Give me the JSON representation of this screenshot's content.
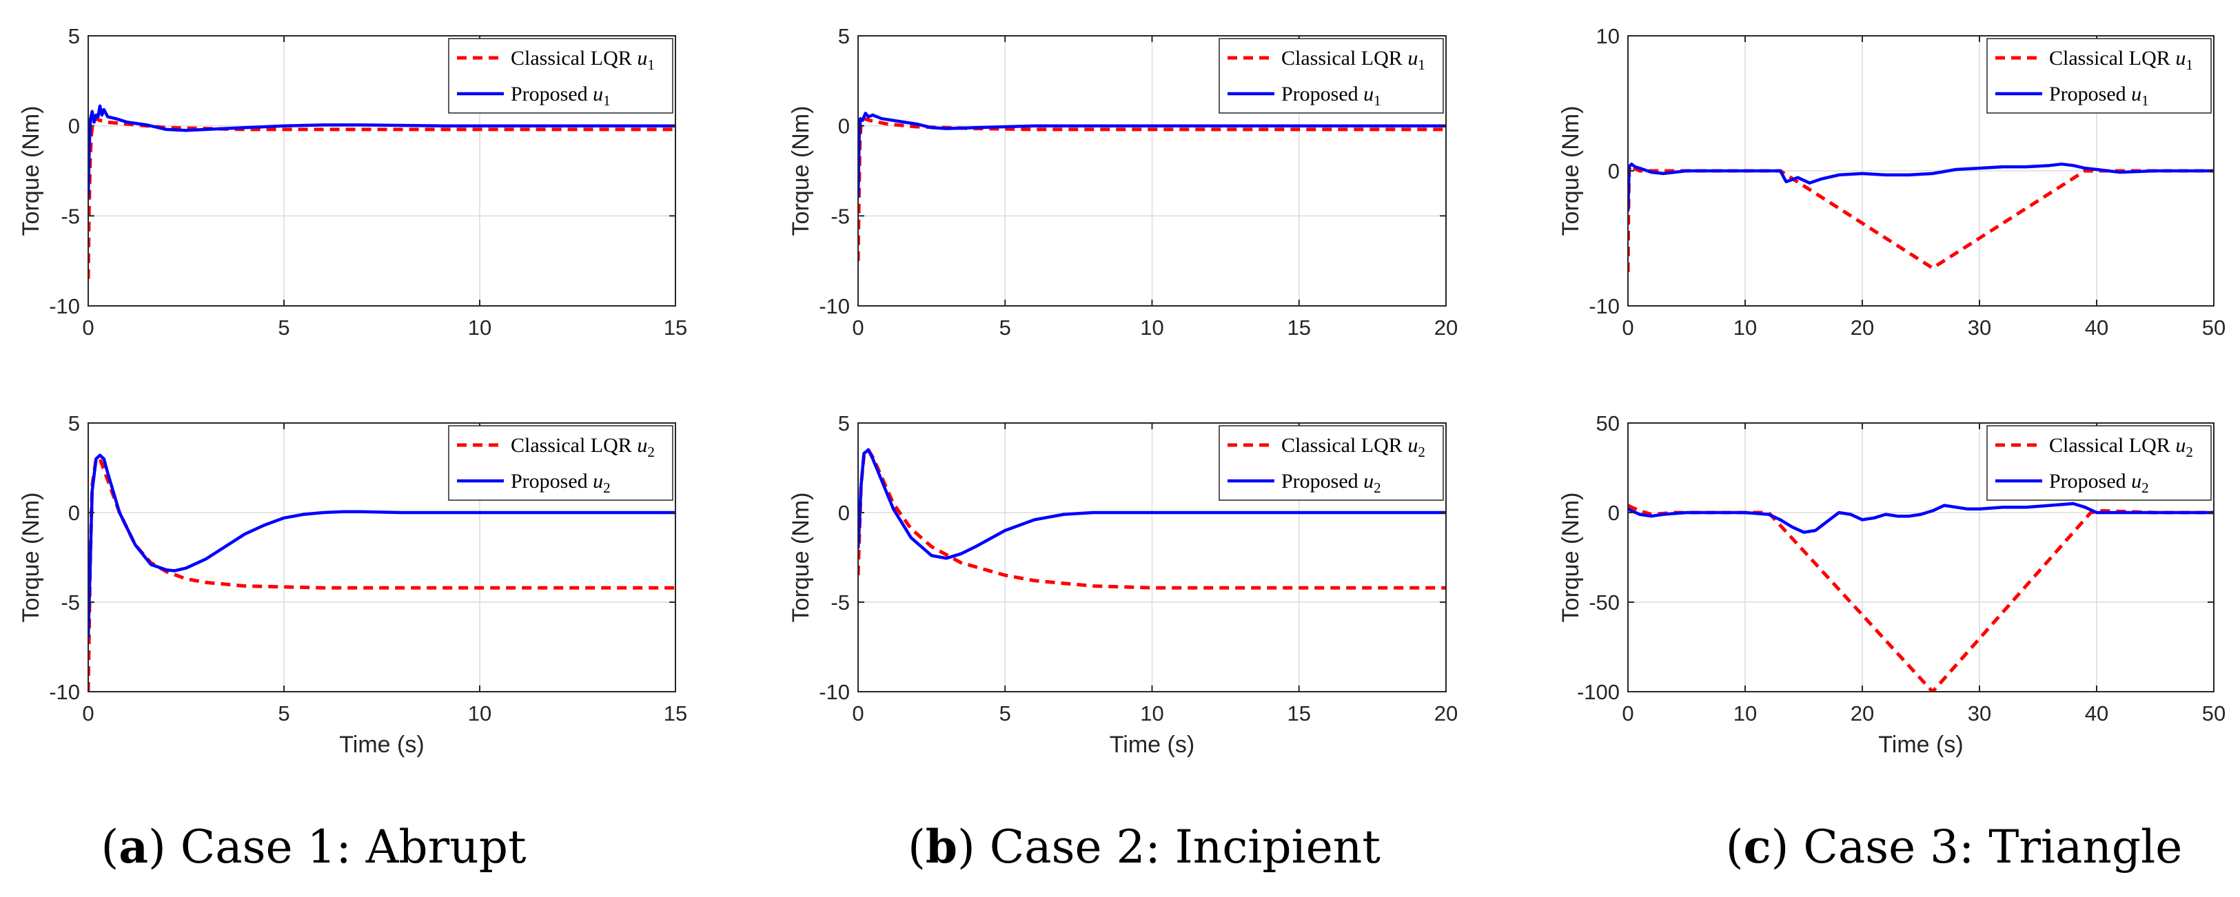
{
  "captions": [
    {
      "letter": "a",
      "text": " Case 1: Abrupt"
    },
    {
      "letter": "b",
      "text": " Case 2: Incipient"
    },
    {
      "letter": "c",
      "text": " Case 3: Triangle"
    }
  ],
  "chart_data": [
    {
      "type": "line",
      "case": "a",
      "position": "top",
      "xlabel": "",
      "ylabel": "Torque (Nm)",
      "xlim": [
        0,
        15
      ],
      "ylim": [
        -10,
        5
      ],
      "xticks": [
        0,
        5,
        10,
        15
      ],
      "yticks": [
        -10,
        -5,
        0,
        5
      ],
      "grid": true,
      "legend_position": "top-right",
      "series": [
        {
          "name": "Classical LQR",
          "sub": "1",
          "color": "#ff0000",
          "dash": true,
          "x": [
            0,
            0.02,
            0.05,
            0.08,
            0.12,
            0.2,
            0.3,
            0.5,
            1,
            2,
            4,
            15
          ],
          "y": [
            -8.5,
            -5,
            -2,
            -0.5,
            0.2,
            0.4,
            0.3,
            0.2,
            0.1,
            -0.1,
            -0.2,
            -0.2
          ]
        },
        {
          "name": "Proposed",
          "sub": "1",
          "color": "#0000ff",
          "dash": false,
          "x": [
            0,
            0.03,
            0.06,
            0.1,
            0.15,
            0.2,
            0.25,
            0.3,
            0.35,
            0.4,
            0.5,
            0.7,
            1,
            1.5,
            2,
            2.5,
            3,
            4,
            5,
            6,
            7,
            9,
            15
          ],
          "y": [
            -4,
            -1,
            0.4,
            0.8,
            0.2,
            0.6,
            0.5,
            1.1,
            0.6,
            0.9,
            0.5,
            0.4,
            0.2,
            0.05,
            -0.2,
            -0.25,
            -0.2,
            -0.1,
            0,
            0.05,
            0.05,
            0,
            0
          ]
        }
      ]
    },
    {
      "type": "line",
      "case": "a",
      "position": "bottom",
      "xlabel": "Time (s)",
      "ylabel": "Torque (Nm)",
      "xlim": [
        0,
        15
      ],
      "ylim": [
        -10,
        5
      ],
      "xticks": [
        0,
        5,
        10,
        15
      ],
      "yticks": [
        -10,
        -5,
        0,
        5
      ],
      "grid": true,
      "legend_position": "top-right",
      "series": [
        {
          "name": "Classical LQR",
          "sub": "2",
          "color": "#ff0000",
          "dash": true,
          "x": [
            0,
            0.05,
            0.1,
            0.2,
            0.3,
            0.5,
            0.8,
            1.2,
            1.6,
            2,
            2.5,
            3,
            4,
            5,
            6,
            8,
            15
          ],
          "y": [
            -10,
            -3,
            1.5,
            3.0,
            3.0,
            1.8,
            0,
            -1.8,
            -2.8,
            -3.3,
            -3.7,
            -3.9,
            -4.1,
            -4.15,
            -4.2,
            -4.2,
            -4.2
          ]
        },
        {
          "name": "Proposed",
          "sub": "2",
          "color": "#0000ff",
          "dash": false,
          "x": [
            0,
            0.05,
            0.1,
            0.2,
            0.3,
            0.4,
            0.5,
            0.8,
            1.2,
            1.6,
            2,
            2.2,
            2.5,
            3,
            3.5,
            4,
            4.5,
            5,
            5.5,
            6,
            6.5,
            7,
            8,
            10,
            15
          ],
          "y": [
            -7,
            -3,
            1.2,
            3.0,
            3.2,
            3.0,
            2.2,
            0,
            -1.8,
            -2.9,
            -3.2,
            -3.25,
            -3.1,
            -2.6,
            -1.9,
            -1.2,
            -0.7,
            -0.3,
            -0.1,
            0,
            0.05,
            0.05,
            0,
            0,
            0
          ]
        }
      ]
    },
    {
      "type": "line",
      "case": "b",
      "position": "top",
      "xlabel": "",
      "ylabel": "Torque (Nm)",
      "xlim": [
        0,
        20
      ],
      "ylim": [
        -10,
        5
      ],
      "xticks": [
        0,
        5,
        10,
        15,
        20
      ],
      "yticks": [
        -10,
        -5,
        0,
        5
      ],
      "grid": true,
      "legend_position": "top-right",
      "series": [
        {
          "name": "Classical LQR",
          "sub": "1",
          "color": "#ff0000",
          "dash": true,
          "x": [
            0,
            0.03,
            0.06,
            0.1,
            0.2,
            0.4,
            1,
            2,
            4,
            6,
            20
          ],
          "y": [
            -7.5,
            -4,
            -1,
            0.2,
            0.4,
            0.3,
            0.1,
            -0.05,
            -0.15,
            -0.2,
            -0.2
          ]
        },
        {
          "name": "Proposed",
          "sub": "1",
          "color": "#0000ff",
          "dash": false,
          "x": [
            0,
            0.04,
            0.08,
            0.15,
            0.25,
            0.35,
            0.5,
            0.8,
            1.2,
            2,
            2.5,
            3,
            4,
            5,
            6,
            8,
            20
          ],
          "y": [
            -4,
            -0.5,
            0.4,
            0.3,
            0.7,
            0.5,
            0.6,
            0.4,
            0.3,
            0.1,
            -0.1,
            -0.15,
            -0.1,
            -0.05,
            0,
            0,
            0
          ]
        }
      ]
    },
    {
      "type": "line",
      "case": "b",
      "position": "bottom",
      "xlabel": "Time (s)",
      "ylabel": "Torque (Nm)",
      "xlim": [
        0,
        20
      ],
      "ylim": [
        -10,
        5
      ],
      "xticks": [
        0,
        5,
        10,
        15,
        20
      ],
      "yticks": [
        -10,
        -5,
        0,
        5
      ],
      "grid": true,
      "legend_position": "top-right",
      "series": [
        {
          "name": "Classical LQR",
          "sub": "2",
          "color": "#ff0000",
          "dash": true,
          "x": [
            0,
            0.05,
            0.1,
            0.2,
            0.35,
            0.5,
            0.8,
            1.2,
            1.8,
            2.5,
            3.5,
            5,
            6,
            8,
            10,
            15,
            20
          ],
          "y": [
            -3.5,
            -1,
            1.5,
            3.2,
            3.5,
            3.1,
            2.0,
            0.5,
            -0.9,
            -1.9,
            -2.8,
            -3.5,
            -3.8,
            -4.1,
            -4.2,
            -4.2,
            -4.2
          ]
        },
        {
          "name": "Proposed",
          "sub": "2",
          "color": "#0000ff",
          "dash": false,
          "x": [
            0,
            0.05,
            0.1,
            0.2,
            0.35,
            0.5,
            0.8,
            1.2,
            1.8,
            2.5,
            3,
            3.5,
            4,
            5,
            6,
            7,
            8,
            10,
            20
          ],
          "y": [
            -2,
            -0.5,
            1.5,
            3.3,
            3.5,
            3.0,
            1.8,
            0.2,
            -1.4,
            -2.4,
            -2.55,
            -2.3,
            -1.9,
            -1.0,
            -0.4,
            -0.1,
            0,
            0,
            0
          ]
        }
      ]
    },
    {
      "type": "line",
      "case": "c",
      "position": "top",
      "xlabel": "",
      "ylabel": "Torque (Nm)",
      "xlim": [
        0,
        50
      ],
      "ylim": [
        -10,
        10
      ],
      "xticks": [
        0,
        10,
        20,
        30,
        40,
        50
      ],
      "yticks": [
        -10,
        0,
        10
      ],
      "grid": true,
      "legend_position": "top-right",
      "series": [
        {
          "name": "Classical LQR",
          "sub": "1",
          "color": "#ff0000",
          "dash": true,
          "x": [
            0,
            0.05,
            0.1,
            0.2,
            0.5,
            1,
            3,
            13,
            26,
            39,
            40,
            50
          ],
          "y": [
            -7.5,
            -3,
            0,
            0.4,
            0.2,
            0,
            0,
            0,
            -7.2,
            0,
            0,
            0
          ]
        },
        {
          "name": "Proposed",
          "sub": "1",
          "color": "#0000ff",
          "dash": false,
          "x": [
            0,
            0.1,
            0.3,
            0.6,
            1,
            2,
            3,
            5,
            8,
            10,
            13,
            13.5,
            14.5,
            15.5,
            16.5,
            18,
            20,
            22,
            24,
            26,
            28,
            30,
            32,
            34,
            36,
            37,
            38,
            39,
            40,
            42,
            45,
            50
          ],
          "y": [
            -3,
            0.3,
            0.5,
            0.3,
            0.2,
            -0.1,
            -0.2,
            0,
            0,
            0,
            0,
            -0.8,
            -0.5,
            -0.9,
            -0.6,
            -0.3,
            -0.2,
            -0.3,
            -0.3,
            -0.2,
            0.1,
            0.2,
            0.3,
            0.3,
            0.4,
            0.5,
            0.4,
            0.2,
            0.1,
            -0.1,
            0,
            0
          ]
        }
      ]
    },
    {
      "type": "line",
      "case": "c",
      "position": "bottom",
      "xlabel": "Time (s)",
      "ylabel": "Torque (Nm)",
      "xlim": [
        0,
        50
      ],
      "ylim": [
        -100,
        50
      ],
      "xticks": [
        0,
        10,
        20,
        30,
        40,
        50
      ],
      "yticks": [
        -100,
        -50,
        0,
        50
      ],
      "grid": true,
      "legend_position": "top-right",
      "series": [
        {
          "name": "Classical LQR",
          "sub": "2",
          "color": "#ff0000",
          "dash": true,
          "x": [
            0,
            0.3,
            1,
            2,
            4,
            8,
            12,
            26,
            39.5,
            40.5,
            45,
            50
          ],
          "y": [
            4,
            3,
            1,
            -1,
            0,
            0,
            0,
            -100,
            0,
            1,
            0,
            0
          ]
        },
        {
          "name": "Proposed",
          "sub": "2",
          "color": "#0000ff",
          "dash": false,
          "x": [
            0,
            0.3,
            1,
            2,
            3,
            5,
            8,
            10,
            12,
            13,
            14,
            15,
            16,
            17,
            18,
            19,
            20,
            21,
            22,
            23,
            24,
            25,
            26,
            27,
            28,
            29,
            30,
            32,
            34,
            36,
            38,
            39,
            40,
            42,
            45,
            50
          ],
          "y": [
            2,
            1,
            -1,
            -2,
            -1,
            0,
            0,
            0,
            -1,
            -4,
            -8,
            -11,
            -10,
            -5,
            0,
            -1,
            -4,
            -3,
            -1,
            -2,
            -2,
            -1,
            1,
            4,
            3,
            2,
            2,
            3,
            3,
            4,
            5,
            3,
            0,
            0,
            0,
            0
          ]
        }
      ]
    }
  ]
}
